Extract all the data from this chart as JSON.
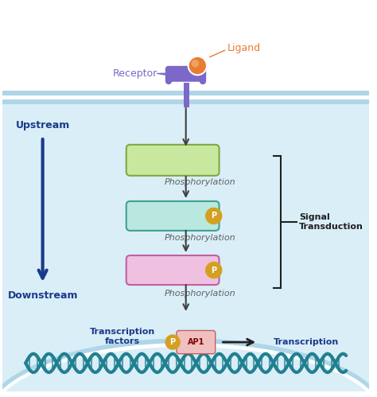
{
  "bg_color": "#ffffff",
  "cell_membrane_color": "#aed6e8",
  "cell_interior_color": "#daeef7",
  "nucleus_membrane_color": "#aed6e8",
  "membrane_stripe_color": "#c8e4f0",
  "receptor_color": "#7b68c8",
  "ligand_color": "#e87c30",
  "ligand_line_color": "#e87c30",
  "protein1_fill": "#c8e8a0",
  "protein1_edge": "#7aaa40",
  "protein2_fill": "#b8e8e0",
  "protein2_edge": "#40a090",
  "protein3_fill": "#f0c0e0",
  "protein3_edge": "#c060a0",
  "phospho_fill": "#d4a020",
  "phospho_text": "#ffffff",
  "ap1_fill": "#f0c0c0",
  "ap1_edge": "#c06060",
  "arrow_color": "#404040",
  "upstream_color": "#1a3a8a",
  "downstream_color": "#1a3a8a",
  "signal_bracket_color": "#202020",
  "dna_color": "#208090",
  "transcription_arrow_color": "#202020",
  "text_label_color": "#1a3a8a",
  "phospho_label": "P",
  "protein_labels": [
    "",
    "",
    ""
  ],
  "phosphorylation_label": "Phosphorylation",
  "upstream_label": "Upstream",
  "downstream_label": "Downstream",
  "signal_transduction_label": "Signal\nTransduction",
  "receptor_label": "Receptor",
  "ligand_label": "Ligand",
  "transcription_factors_label": "Transcription\nfactors",
  "ap1_label": "AP1",
  "transcription_label": "Transcription"
}
